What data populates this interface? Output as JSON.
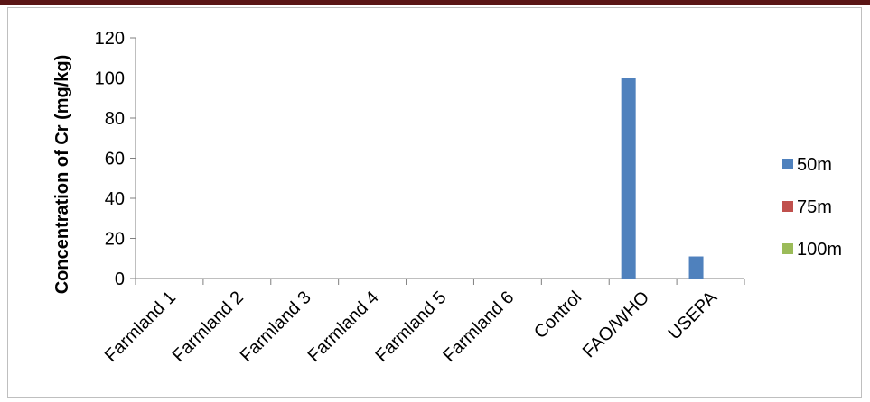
{
  "colors": {
    "top_bar": "#5a1515",
    "axis": "#7f7f7f"
  },
  "chart_data": {
    "type": "bar",
    "title": "",
    "xlabel": "",
    "ylabel": "Concentration of Cr (mg/kg)",
    "ylim": [
      0,
      120
    ],
    "yticks": [
      0,
      20,
      40,
      60,
      80,
      100,
      120
    ],
    "grid": false,
    "legend_position": "right",
    "categories": [
      "Farmland 1",
      "Farmland 2",
      "Farmland 3",
      "Farmland 4",
      "Farmland 5",
      "Farmland 6",
      "Control",
      "FAO/WHO",
      "USEPA"
    ],
    "series": [
      {
        "name": "50m",
        "color": "#4f81bd",
        "values": [
          0,
          0,
          0,
          0,
          0,
          0,
          0,
          100,
          11
        ]
      },
      {
        "name": "75m",
        "color": "#c0504d",
        "values": [
          0,
          0,
          0,
          0,
          0,
          0,
          0,
          0,
          0
        ]
      },
      {
        "name": "100m",
        "color": "#9bbb59",
        "values": [
          0,
          0,
          0,
          0,
          0,
          0,
          0,
          0,
          0
        ]
      }
    ]
  }
}
